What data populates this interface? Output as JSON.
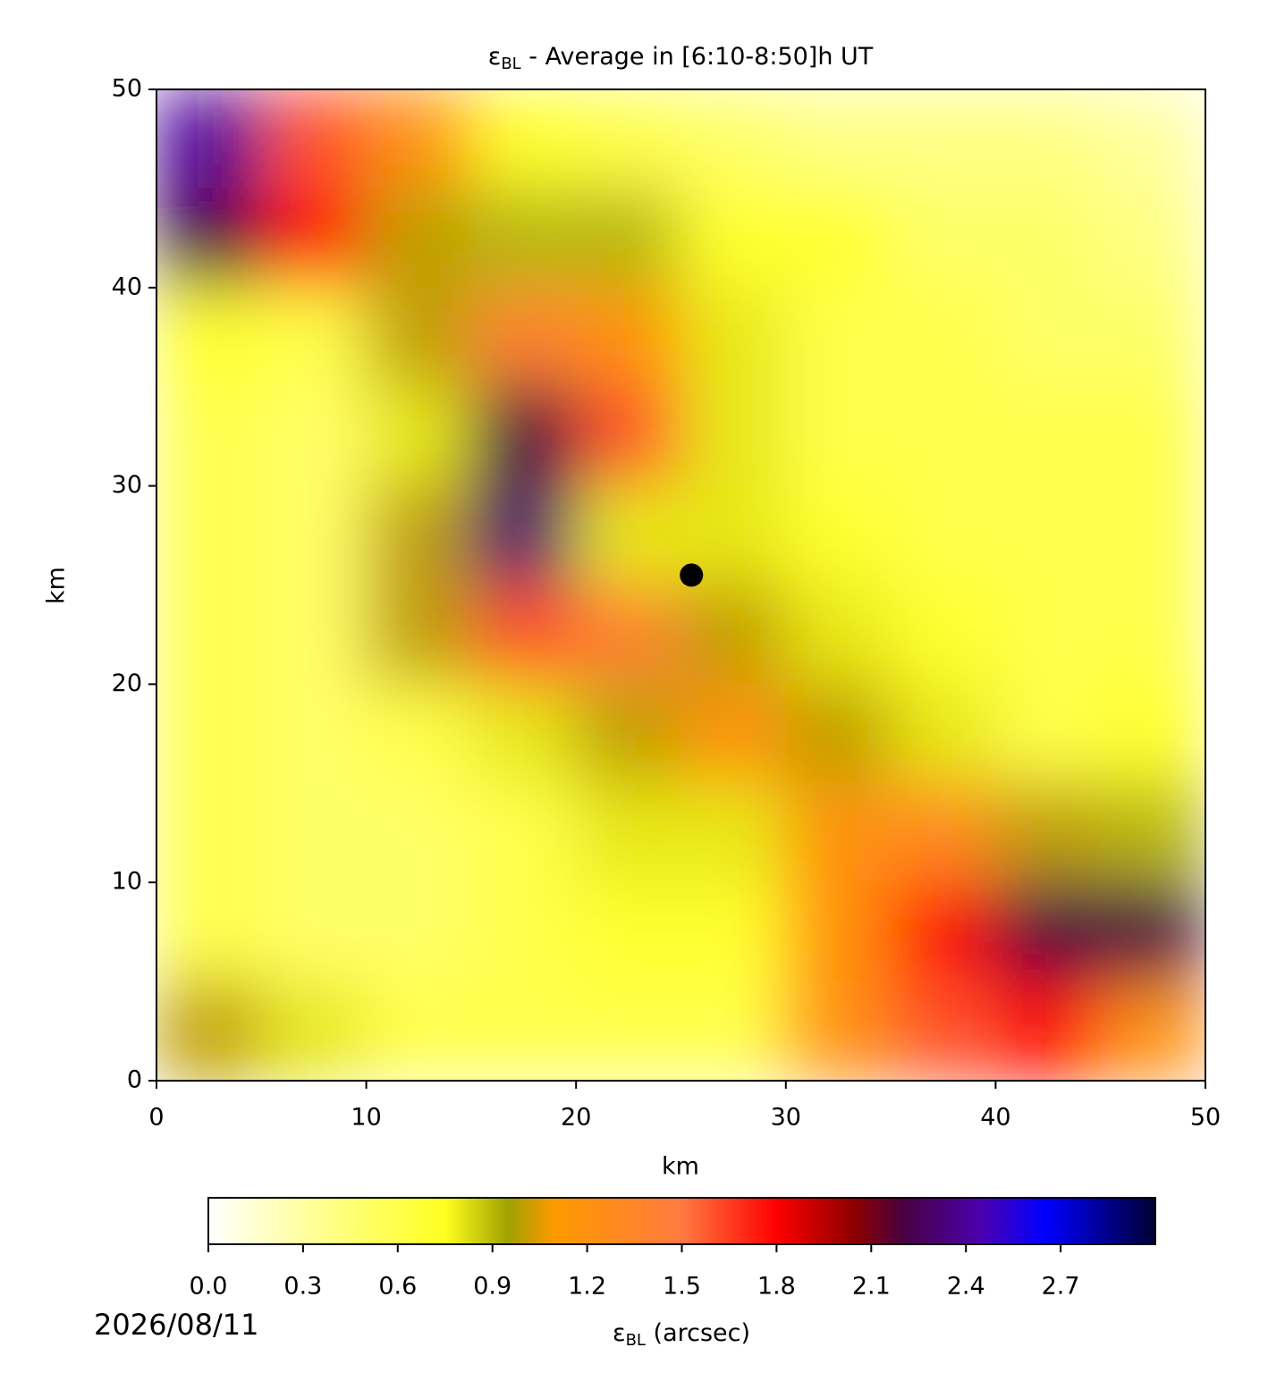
{
  "chart_data": {
    "type": "heatmap",
    "title": [
      "ε",
      "BL",
      " - Average in [6:10-8:50]h UT"
    ],
    "x_label": "km",
    "y_label": "km",
    "xlim": [
      0,
      50
    ],
    "ylim": [
      0,
      50
    ],
    "xticks": [
      0,
      10,
      20,
      30,
      40,
      50
    ],
    "yticks": [
      0,
      10,
      20,
      30,
      40,
      50
    ],
    "x": [
      2.5,
      7.5,
      12.5,
      17.5,
      22.5,
      27.5,
      32.5,
      37.5,
      42.5,
      47.5
    ],
    "y": [
      47.5,
      42.5,
      37.5,
      32.5,
      27.5,
      22.5,
      17.5,
      12.5,
      7.5,
      2.5
    ],
    "z": [
      [
        2.4,
        1.6,
        1.2,
        0.7,
        0.6,
        0.5,
        0.4,
        0.4,
        0.4,
        0.3
      ],
      [
        2.2,
        1.8,
        1.0,
        0.9,
        0.9,
        0.7,
        0.7,
        0.5,
        0.5,
        0.4
      ],
      [
        0.7,
        0.6,
        1.0,
        1.4,
        1.2,
        0.8,
        0.6,
        0.6,
        0.5,
        0.5
      ],
      [
        0.6,
        0.5,
        0.8,
        2.2,
        1.6,
        0.8,
        0.6,
        0.6,
        0.6,
        0.6
      ],
      [
        0.6,
        0.5,
        1.0,
        2.3,
        0.8,
        0.8,
        0.7,
        0.6,
        0.6,
        0.6
      ],
      [
        0.6,
        0.5,
        1.0,
        1.6,
        1.4,
        1.0,
        0.8,
        0.7,
        0.6,
        0.6
      ],
      [
        0.6,
        0.5,
        0.6,
        0.8,
        1.0,
        1.2,
        1.0,
        0.8,
        0.6,
        0.7
      ],
      [
        0.6,
        0.5,
        0.5,
        0.6,
        0.8,
        0.8,
        1.2,
        1.3,
        1.0,
        0.9
      ],
      [
        0.6,
        0.5,
        0.5,
        0.6,
        0.7,
        0.7,
        1.2,
        1.8,
        2.2,
        2.2
      ],
      [
        1.0,
        0.8,
        0.6,
        0.6,
        0.6,
        0.6,
        1.2,
        1.6,
        1.8,
        1.2
      ]
    ],
    "marker": {
      "x": 25.5,
      "y": 25.5,
      "color": "#000000"
    },
    "colorbar": {
      "label": [
        "ε",
        "BL",
        " (arcsec)"
      ],
      "clim": [
        0,
        3
      ],
      "ticks": [
        {
          "value": 0,
          "label": "0.0"
        },
        0.3,
        0.6,
        0.9,
        1.2,
        1.5,
        1.8,
        2.1,
        2.4,
        2.7
      ],
      "cmap": [
        {
          "v": 0,
          "c": "#ffffff"
        },
        {
          "v": 0.3,
          "c": "#ffffa0"
        },
        {
          "v": 0.75,
          "c": "#ffff20"
        },
        {
          "v": 0.95,
          "c": "#a0a000"
        },
        {
          "v": 1.1,
          "c": "#ff9900"
        },
        {
          "v": 1.5,
          "c": "#ff7a40"
        },
        {
          "v": 1.8,
          "c": "#ff0000"
        },
        {
          "v": 2.05,
          "c": "#8b0000"
        },
        {
          "v": 2.2,
          "c": "#4a0040"
        },
        {
          "v": 2.45,
          "c": "#4b00b0"
        },
        {
          "v": 2.65,
          "c": "#0000ff"
        },
        {
          "v": 3,
          "c": "#000033"
        }
      ]
    },
    "date": "2026/08/11"
  }
}
